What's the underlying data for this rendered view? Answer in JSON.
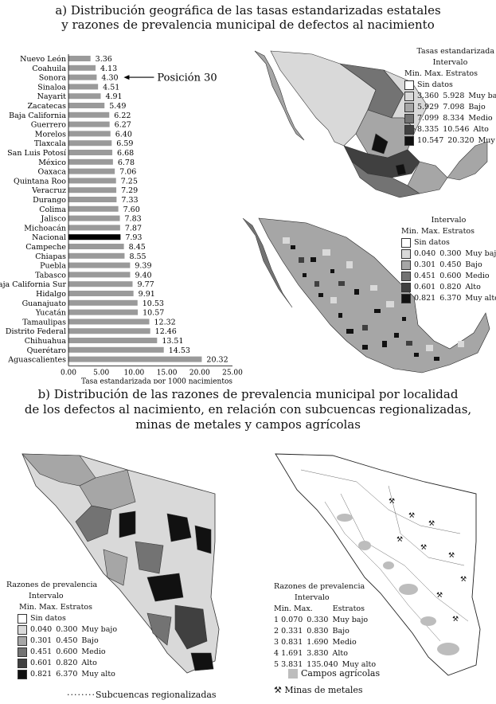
{
  "title_a_line1": "a) Distribución geográfica de las tasas estandarizadas estatales",
  "title_a_line2": "y razones de prevalencia municipal de defectos al nacimiento",
  "title_b_line1": "b) Distribución de las razones de prevalencia municipal por localidad",
  "title_b_line2": "de los defectos al nacimiento, en relación con subcuencas regionalizadas,",
  "title_b_line3": "minas de metales y campos agrícolas",
  "chart_data": {
    "type": "bar",
    "orientation": "horizontal",
    "categories": [
      "Nuevo León",
      "Coahuila",
      "Sonora",
      "Sinaloa",
      "Nayarit",
      "Zacatecas",
      "Baja California",
      "Guerrero",
      "Morelos",
      "Tlaxcala",
      "San Luis Potosí",
      "México",
      "Oaxaca",
      "Quintana Roo",
      "Veracruz",
      "Durango",
      "Colima",
      "Jalisco",
      "Michoacán",
      "Nacional",
      "Campeche",
      "Chiapas",
      "Puebla",
      "Tabasco",
      "Baja California Sur",
      "Hidalgo",
      "Guanajuato",
      "Yucatán",
      "Tamaulipas",
      "Distrito Federal",
      "Chihuahua",
      "Querétaro",
      "Aguascalientes"
    ],
    "values": [
      3.36,
      4.13,
      4.3,
      4.51,
      4.91,
      5.49,
      6.22,
      6.27,
      6.4,
      6.59,
      6.68,
      6.78,
      7.06,
      7.25,
      7.29,
      7.33,
      7.6,
      7.83,
      7.87,
      7.93,
      8.45,
      8.55,
      9.39,
      9.4,
      9.77,
      9.91,
      10.53,
      10.57,
      12.32,
      12.46,
      13.51,
      14.53,
      20.32
    ],
    "value_labels": [
      "3.36",
      "4.13",
      "4.30",
      "4.51",
      "4.91",
      "5.49",
      "6.22",
      "6.27",
      "6.40",
      "6.59",
      "6.68",
      "6.78",
      "7.06",
      "7.25",
      "7.29",
      "7.33",
      "7.60",
      "7.83",
      "7.87",
      "7.93",
      "8.45",
      "8.55",
      "9.39",
      "9.40",
      "9.77",
      "9.91",
      "10.53",
      "10.57",
      "12.32",
      "12.46",
      "13.51",
      "14.53",
      "20.32"
    ],
    "highlight_category": "Nacional",
    "annotation": "Posición 30",
    "annotated_category": "Sonora",
    "xlabel": "Tasa estandarizada por 1000 nacimientos",
    "xlim": [
      0,
      25
    ],
    "xticks": [
      "0.00",
      "5.00",
      "10.00",
      "15.00",
      "20.00",
      "25.00"
    ]
  },
  "legend_state": {
    "title1": "Tasas estandarizada",
    "title2": "Intervalo",
    "col_min": "Min.",
    "col_max": "Max.",
    "col_strata": "Estratos",
    "no_data": "Sin datos",
    "rows": [
      {
        "min": "3.360",
        "max": "5.928",
        "label": "Muy bajo",
        "color": "#d9d9d9"
      },
      {
        "min": "5.929",
        "max": "7.098",
        "label": "Bajo",
        "color": "#a6a6a6"
      },
      {
        "min": "7.099",
        "max": "8.334",
        "label": "Medio",
        "color": "#737373"
      },
      {
        "min": "8.335",
        "max": "10.546",
        "label": "Alto",
        "color": "#404040"
      },
      {
        "min": "10.547",
        "max": "20.320",
        "label": "Muy alto",
        "color": "#111111"
      }
    ]
  },
  "legend_muni": {
    "title": "Intervalo",
    "col_min": "Min.",
    "col_max": "Max.",
    "col_strata": "Estratos",
    "no_data": "Sin datos",
    "rows": [
      {
        "min": "0.040",
        "max": "0.300",
        "label": "Muy bajo",
        "color": "#d9d9d9"
      },
      {
        "min": "0.301",
        "max": "0.450",
        "label": "Bajo",
        "color": "#a6a6a6"
      },
      {
        "min": "0.451",
        "max": "0.600",
        "label": "Medio",
        "color": "#737373"
      },
      {
        "min": "0.601",
        "max": "0.820",
        "label": "Alto",
        "color": "#404040"
      },
      {
        "min": "0.821",
        "max": "6.370",
        "label": "Muy alto",
        "color": "#111111"
      }
    ]
  },
  "legend_sonora1": {
    "title1": "Razones de prevalencia",
    "title2": "Intervalo",
    "col_min": "Min.",
    "col_max": "Max.",
    "col_strata": "Estratos",
    "no_data": "Sin datos",
    "rows": [
      {
        "min": "0.040",
        "max": "0.300",
        "label": "Muy bajo",
        "color": "#d9d9d9"
      },
      {
        "min": "0.301",
        "max": "0.450",
        "label": "Bajo",
        "color": "#a6a6a6"
      },
      {
        "min": "0.451",
        "max": "0.600",
        "label": "Medio",
        "color": "#737373"
      },
      {
        "min": "0.601",
        "max": "0.820",
        "label": "Alto",
        "color": "#404040"
      },
      {
        "min": "0.821",
        "max": "6.370",
        "label": "Muy alto",
        "color": "#111111"
      }
    ],
    "subcuencas": "Subcuencas regionalizadas"
  },
  "legend_sonora2": {
    "title1": "Razones de prevalencia",
    "title2": "Intervalo",
    "col_min": "Min.",
    "col_max": "Max.",
    "col_strata": "Estratos",
    "rows": [
      {
        "n": "1",
        "min": "0.070",
        "max": "0.330",
        "label": "Muy bajo"
      },
      {
        "n": "2",
        "min": "0.331",
        "max": "0.830",
        "label": "Bajo"
      },
      {
        "n": "3",
        "min": "0.831",
        "max": "1.690",
        "label": "Medio"
      },
      {
        "n": "4",
        "min": "1.691",
        "max": "3.830",
        "label": "Alto"
      },
      {
        "n": "5",
        "min": "3.831",
        "max": "135.040",
        "label": "Muy alto"
      }
    ],
    "campos": "Campos agrícolas",
    "minas": "Minas de metales"
  }
}
